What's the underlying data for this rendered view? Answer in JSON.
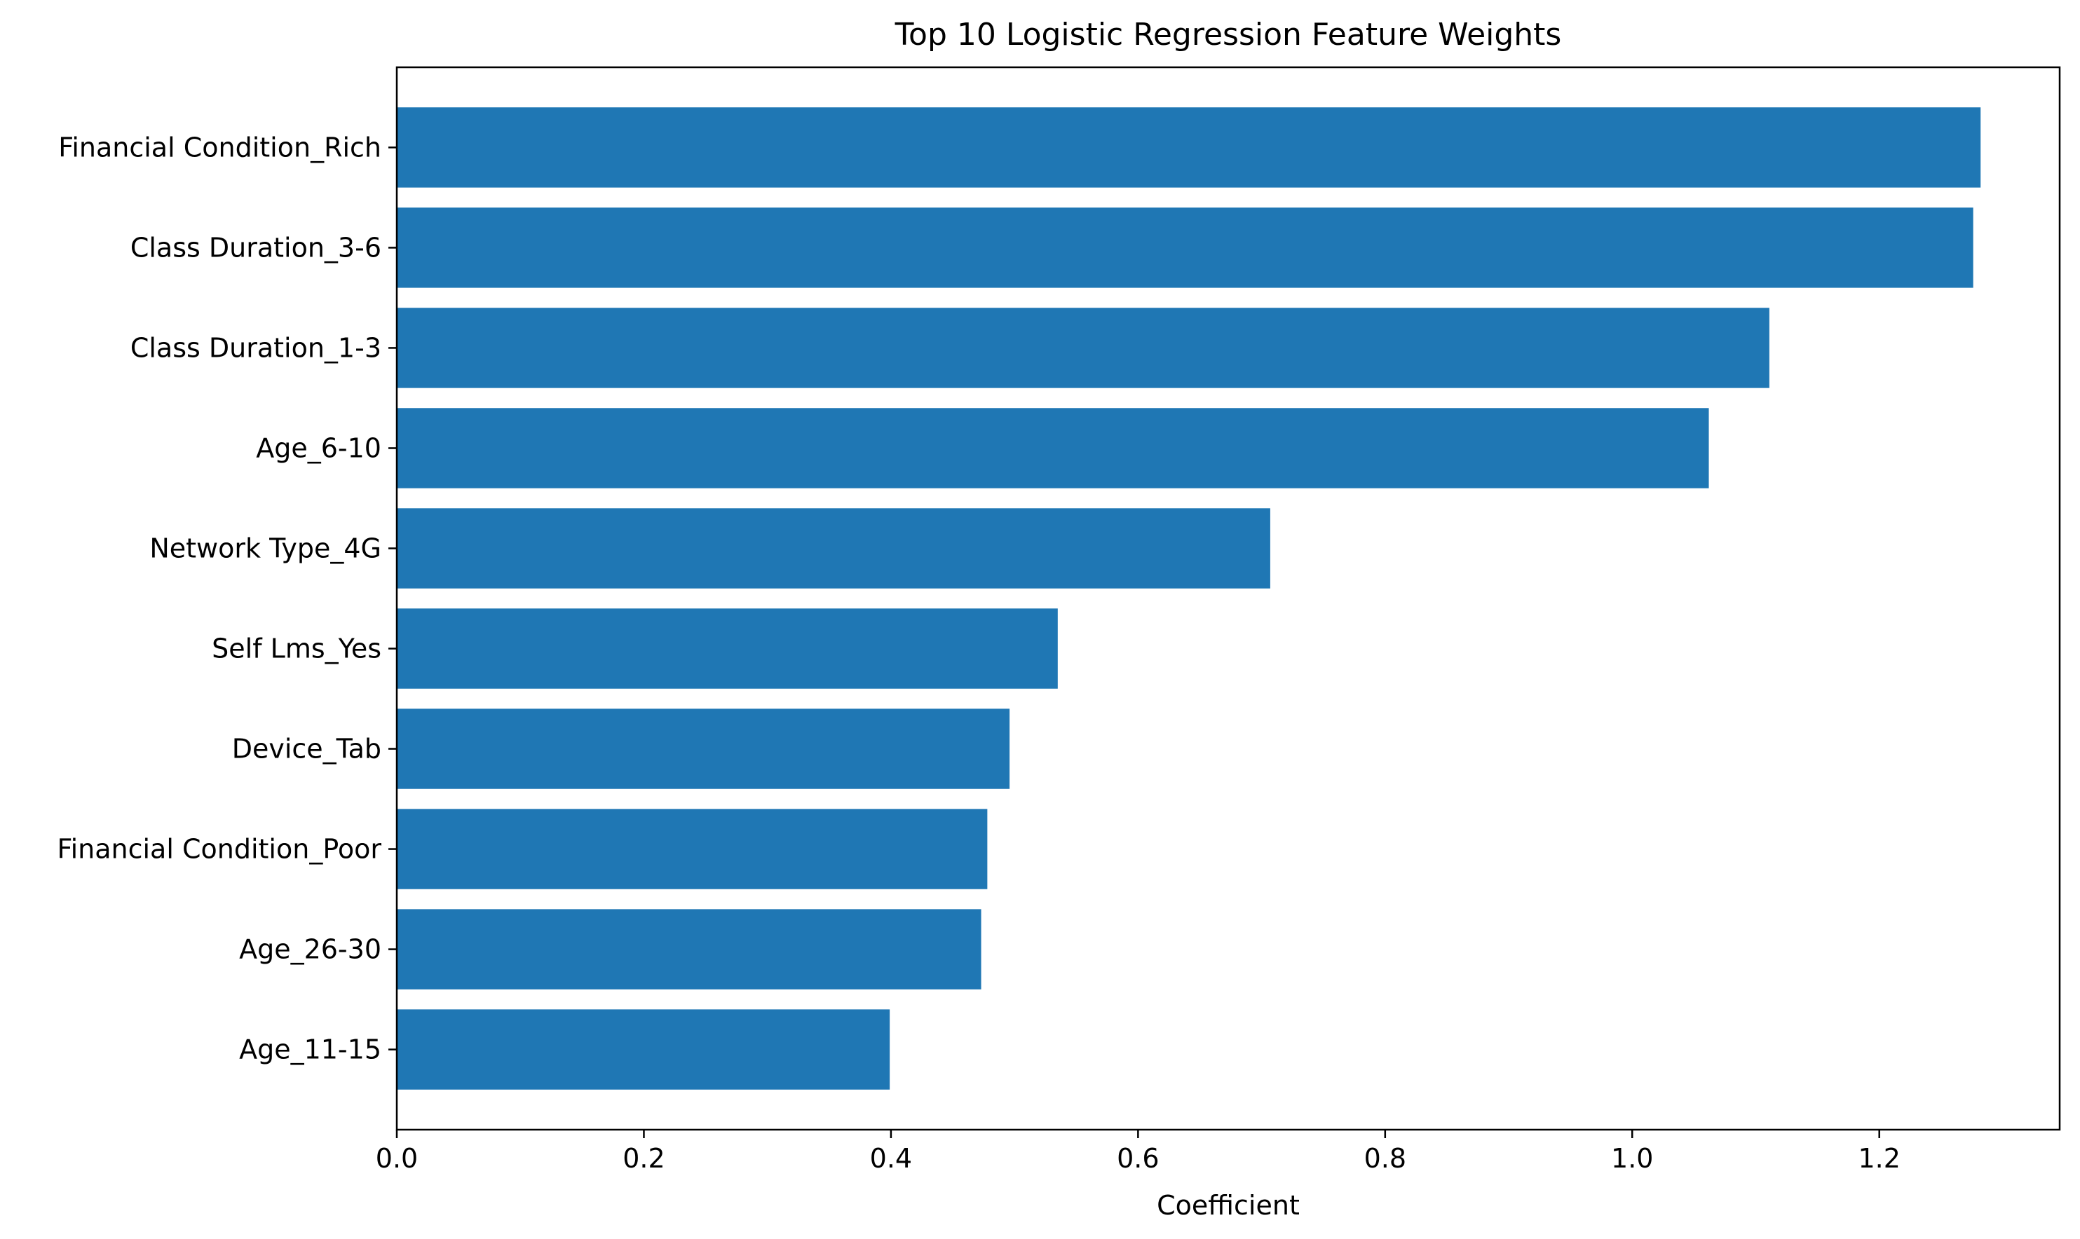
{
  "chart_data": {
    "type": "bar",
    "orientation": "horizontal",
    "title": "Top 10 Logistic Regression Feature Weights",
    "xlabel": "Coefficient",
    "ylabel": "",
    "categories": [
      "Financial Condition_Rich",
      "Class Duration_3-6",
      "Class Duration_1-3",
      "Age_6-10",
      "Network Type_4G",
      "Self Lms_Yes",
      "Device_Tab",
      "Financial Condition_Poor",
      "Age_26-30",
      "Age_11-15"
    ],
    "values": [
      1.282,
      1.276,
      1.111,
      1.062,
      0.707,
      0.535,
      0.496,
      0.478,
      0.473,
      0.399
    ],
    "xlim": [
      0.0,
      1.346
    ],
    "xticks": [
      0.0,
      0.2,
      0.4,
      0.6,
      0.8,
      1.0,
      1.2
    ],
    "xtick_labels": [
      "0.0",
      "0.2",
      "0.4",
      "0.6",
      "0.8",
      "1.0",
      "1.2"
    ],
    "bar_color": "#1f77b4",
    "grid": false,
    "legend": "none"
  }
}
